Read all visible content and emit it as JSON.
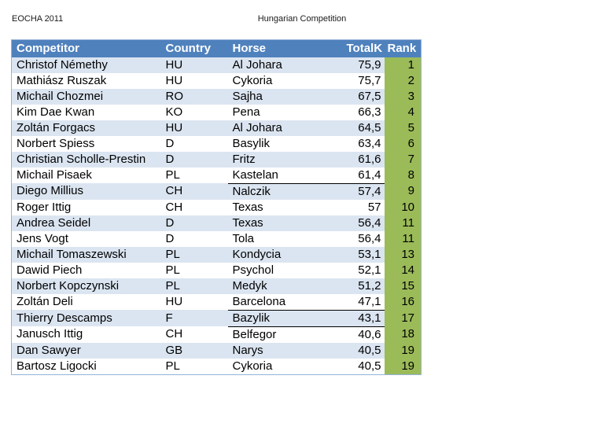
{
  "header": {
    "left_title": "EOCHA 2011",
    "center_title": "Hungarian Competition"
  },
  "colors": {
    "header_bg": "#4f81bd",
    "alt_row_bg": "#dbe5f1",
    "rank_bg": "#9bbb59",
    "header_text": "#ffffff"
  },
  "table": {
    "columns": [
      "Competitor",
      "Country",
      "Horse",
      "TotalK",
      "Rank"
    ],
    "fields": [
      "competitor",
      "country",
      "horse",
      "totalk",
      "rank"
    ],
    "rows": [
      {
        "competitor": "Christof Némethy",
        "country": "HU",
        "horse": "Al Johara",
        "totalk": "75,9",
        "rank": "1"
      },
      {
        "competitor": "Mathiász Ruszak",
        "country": "HU",
        "horse": "Cykoria",
        "totalk": "75,7",
        "rank": "2"
      },
      {
        "competitor": "Michail Chozmei",
        "country": "RO",
        "horse": "Sajha",
        "totalk": "67,5",
        "rank": "3"
      },
      {
        "competitor": "Kim Dae Kwan",
        "country": "KO",
        "horse": "Pena",
        "totalk": "66,3",
        "rank": "4"
      },
      {
        "competitor": "Zoltán Forgacs",
        "country": "HU",
        "horse": "Al Johara",
        "totalk": "64,5",
        "rank": "5"
      },
      {
        "competitor": "Norbert Spiess",
        "country": "D",
        "horse": "Basylik",
        "totalk": "63,4",
        "rank": "6"
      },
      {
        "competitor": "Christian Scholle-Prestin",
        "country": "D",
        "horse": "Fritz",
        "totalk": "61,6",
        "rank": "7"
      },
      {
        "competitor": "Michail Pisaek",
        "country": "PL",
        "horse": "Kastelan",
        "totalk": "61,4",
        "rank": "8",
        "underline": true
      },
      {
        "competitor": "Diego Millius",
        "country": "CH",
        "horse": "Nalczik",
        "totalk": "57,4",
        "rank": "9"
      },
      {
        "competitor": "Roger Ittig",
        "country": "CH",
        "horse": "Texas",
        "totalk": "57",
        "rank": "10"
      },
      {
        "competitor": "Andrea Seidel",
        "country": "D",
        "horse": "Texas",
        "totalk": "56,4",
        "rank": "11"
      },
      {
        "competitor": "Jens Vogt",
        "country": "D",
        "horse": "Tola",
        "totalk": "56,4",
        "rank": "11"
      },
      {
        "competitor": "Michail Tomaszewski",
        "country": "PL",
        "horse": "Kondycia",
        "totalk": "53,1",
        "rank": "13"
      },
      {
        "competitor": "Dawid Piech",
        "country": "PL",
        "horse": "Psychol",
        "totalk": "52,1",
        "rank": "14"
      },
      {
        "competitor": "Norbert Kopczynski",
        "country": "PL",
        "horse": "Medyk",
        "totalk": "51,2",
        "rank": "15"
      },
      {
        "competitor": "Zoltán Deli",
        "country": "HU",
        "horse": "Barcelona",
        "totalk": "47,1",
        "rank": "16",
        "underline": true
      },
      {
        "competitor": "Thierry Descamps",
        "country": "F",
        "horse": "Bazylik",
        "totalk": "43,1",
        "rank": "17",
        "underline": true
      },
      {
        "competitor": "Janusch Ittig",
        "country": "CH",
        "horse": "Belfegor",
        "totalk": "40,6",
        "rank": "18"
      },
      {
        "competitor": "Dan Sawyer",
        "country": "GB",
        "horse": "Narys",
        "totalk": "40,5",
        "rank": "19"
      },
      {
        "competitor": "Bartosz Ligocki",
        "country": "PL",
        "horse": "Cykoria",
        "totalk": "40,5",
        "rank": "19"
      }
    ]
  }
}
